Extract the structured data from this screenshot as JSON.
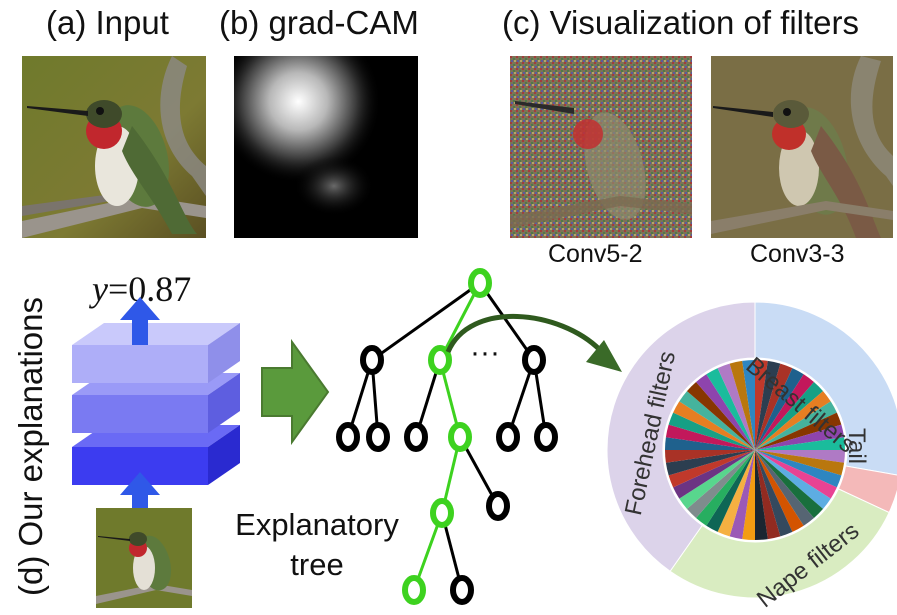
{
  "panel_a": {
    "title": "(a) Input",
    "image": "hummingbird-photo"
  },
  "panel_b": {
    "title": "(b) grad-CAM",
    "image": "grad-cam-heatmap"
  },
  "panel_c": {
    "title": "(c) Visualization of filters",
    "items": [
      {
        "caption": "Conv5-2",
        "image": "filter-visualization-conv5-2"
      },
      {
        "caption": "Conv3-3",
        "image": "filter-visualization-conv3-3"
      }
    ]
  },
  "panel_d": {
    "title": "(d) Our explanations",
    "output_label_var": "y",
    "output_label_value": "=0.87",
    "tree_label_line1": "Explanatory",
    "tree_label_line2": "tree",
    "tree_ellipsis": "···",
    "pie_segments": [
      {
        "label": "Breast filters",
        "color": "#c9dcf5"
      },
      {
        "label": "Tail",
        "color": "#f4b9b9"
      },
      {
        "label": "Nape filters",
        "color": "#d9ecc1"
      },
      {
        "label": "Forehead filters",
        "color": "#dcd3ea"
      }
    ],
    "colors": {
      "path": "#3dd21f",
      "node": "#000000",
      "layer": "#4d4df0",
      "arrow": "#2f58e8",
      "flow_arrow": "#5a9a3c"
    }
  }
}
